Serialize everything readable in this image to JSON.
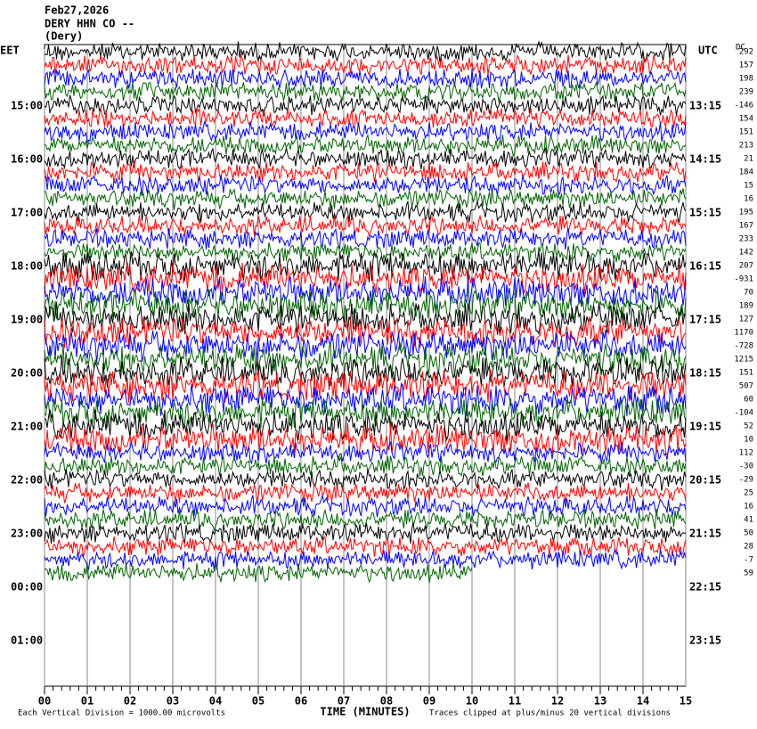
{
  "header": {
    "date": "Feb27,2026",
    "station": "DERY HHN CO --",
    "site": "(Dery)"
  },
  "left_zone": "EET",
  "right_zone": "UTC",
  "dc_title": "DC",
  "left_labels": [
    "15:00",
    "16:00",
    "17:00",
    "18:00",
    "19:00",
    "20:00",
    "21:00",
    "22:00",
    "23:00",
    "00:00",
    "01:00"
  ],
  "right_labels": [
    "13:15",
    "14:15",
    "15:15",
    "16:15",
    "17:15",
    "18:15",
    "19:15",
    "20:15",
    "21:15",
    "22:15",
    "23:15"
  ],
  "dc_offsets": [
    292,
    157,
    198,
    239,
    -146,
    154,
    151,
    213,
    21,
    184,
    15,
    16,
    195,
    167,
    233,
    142,
    207,
    -931,
    70,
    189,
    127,
    1170,
    -728,
    1215,
    151,
    507,
    60,
    -104,
    52,
    10,
    112,
    -30,
    -29,
    25,
    16,
    41,
    50,
    28,
    -7,
    59
  ],
  "trace_colors": [
    "#000000",
    "#ff0000",
    "#0000ff",
    "#006400"
  ],
  "xticks": [
    {
      "value": 0,
      "label": "00"
    },
    {
      "value": 1,
      "label": "01"
    },
    {
      "value": 2,
      "label": "02"
    },
    {
      "value": 3,
      "label": "03"
    },
    {
      "value": 4,
      "label": "04"
    },
    {
      "value": 5,
      "label": "05"
    },
    {
      "value": 6,
      "label": "06"
    },
    {
      "value": 7,
      "label": "07"
    },
    {
      "value": 8,
      "label": "08"
    },
    {
      "value": 9,
      "label": "09"
    },
    {
      "value": 10,
      "label": "10"
    },
    {
      "value": 11,
      "label": "11"
    },
    {
      "value": 12,
      "label": "12"
    },
    {
      "value": 13,
      "label": "13"
    },
    {
      "value": 14,
      "label": "14"
    },
    {
      "value": 15,
      "label": "15"
    }
  ],
  "xlim": [
    0,
    15
  ],
  "last_trace_end": 10,
  "x_label": "TIME (MINUTES)",
  "scale_note": "Each Vertical Division = 1000.00 microvolts",
  "clip_note": "Traces clipped at plus/minus 20 vertical divisions"
}
